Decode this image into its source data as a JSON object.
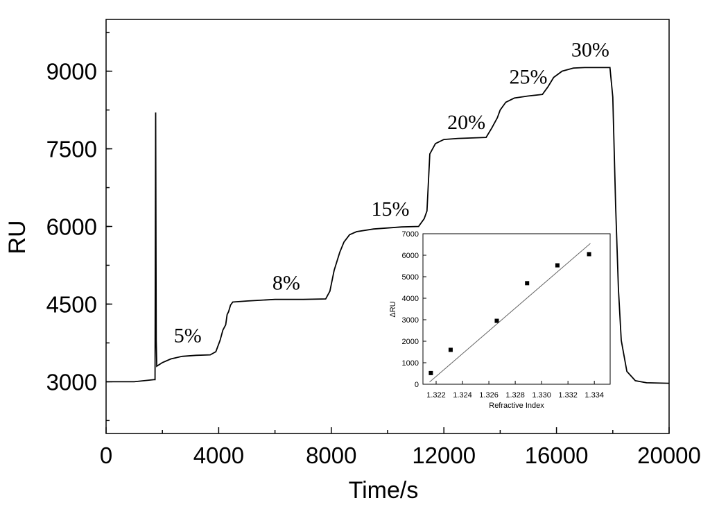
{
  "chart_data": [
    {
      "type": "line",
      "xlabel": "Time/s",
      "ylabel": "RU",
      "xlim": [
        0,
        20000
      ],
      "ylim": [
        2000,
        10000
      ],
      "x_ticks": [
        0,
        4000,
        8000,
        12000,
        16000,
        20000
      ],
      "y_ticks": [
        3000,
        4500,
        6000,
        7500,
        9000
      ],
      "grid": false,
      "series": [
        {
          "points": [
            [
              0,
              3000
            ],
            [
              1000,
              3000
            ],
            [
              1700,
              3040
            ],
            [
              1740,
              3040
            ],
            [
              1760,
              8200
            ],
            [
              1780,
              3800
            ],
            [
              1800,
              3300
            ],
            [
              2000,
              3370
            ],
            [
              2300,
              3440
            ],
            [
              2700,
              3490
            ],
            [
              3200,
              3510
            ],
            [
              3700,
              3520
            ],
            [
              3900,
              3580
            ],
            [
              4050,
              3800
            ],
            [
              4150,
              4000
            ],
            [
              4250,
              4100
            ],
            [
              4300,
              4300
            ],
            [
              4350,
              4350
            ],
            [
              4420,
              4480
            ],
            [
              4500,
              4540
            ],
            [
              5000,
              4560
            ],
            [
              6000,
              4590
            ],
            [
              7000,
              4590
            ],
            [
              7800,
              4600
            ],
            [
              7950,
              4750
            ],
            [
              8100,
              5150
            ],
            [
              8300,
              5500
            ],
            [
              8450,
              5700
            ],
            [
              8650,
              5840
            ],
            [
              8900,
              5900
            ],
            [
              9500,
              5950
            ],
            [
              10500,
              5990
            ],
            [
              11100,
              6000
            ],
            [
              11300,
              6150
            ],
            [
              11400,
              6300
            ],
            [
              11500,
              7400
            ],
            [
              11700,
              7600
            ],
            [
              12000,
              7680
            ],
            [
              12500,
              7700
            ],
            [
              13500,
              7720
            ],
            [
              13700,
              7900
            ],
            [
              13900,
              8100
            ],
            [
              14000,
              8250
            ],
            [
              14200,
              8400
            ],
            [
              14500,
              8480
            ],
            [
              15000,
              8520
            ],
            [
              15500,
              8550
            ],
            [
              15700,
              8700
            ],
            [
              15900,
              8880
            ],
            [
              16200,
              9000
            ],
            [
              16600,
              9060
            ],
            [
              17000,
              9070
            ],
            [
              17900,
              9070
            ],
            [
              18000,
              8500
            ],
            [
              18100,
              6400
            ],
            [
              18200,
              4800
            ],
            [
              18300,
              3800
            ],
            [
              18500,
              3200
            ],
            [
              18800,
              3020
            ],
            [
              19200,
              2980
            ],
            [
              20000,
              2970
            ]
          ]
        }
      ],
      "annotations": [
        {
          "text": "5%",
          "x": 2900,
          "y": 3760
        },
        {
          "text": "8%",
          "x": 6400,
          "y": 4780
        },
        {
          "text": "15%",
          "x": 10100,
          "y": 6210
        },
        {
          "text": "20%",
          "x": 12800,
          "y": 7880
        },
        {
          "text": "25%",
          "x": 15000,
          "y": 8760
        },
        {
          "text": "30%",
          "x": 17200,
          "y": 9280
        }
      ]
    },
    {
      "type": "scatter",
      "xlabel": "Refractive Index",
      "ylabel": "ΔRU",
      "xlim": [
        1.321,
        1.3352
      ],
      "ylim": [
        0,
        7000
      ],
      "x_ticks": [
        "1.322",
        "1.324",
        "1.326",
        "1.328",
        "1.330",
        "1.332",
        "1.334"
      ],
      "y_ticks": [
        0,
        1000,
        2000,
        3000,
        4000,
        5000,
        6000,
        7000
      ],
      "points": [
        {
          "x": 1.3216,
          "y": 520
        },
        {
          "x": 1.3231,
          "y": 1600
        },
        {
          "x": 1.3266,
          "y": 2950
        },
        {
          "x": 1.3289,
          "y": 4700
        },
        {
          "x": 1.3312,
          "y": 5530
        },
        {
          "x": 1.3336,
          "y": 6050
        }
      ],
      "fit_line": {
        "x": [
          1.3215,
          1.3337
        ],
        "y": [
          100,
          6550
        ]
      }
    }
  ]
}
